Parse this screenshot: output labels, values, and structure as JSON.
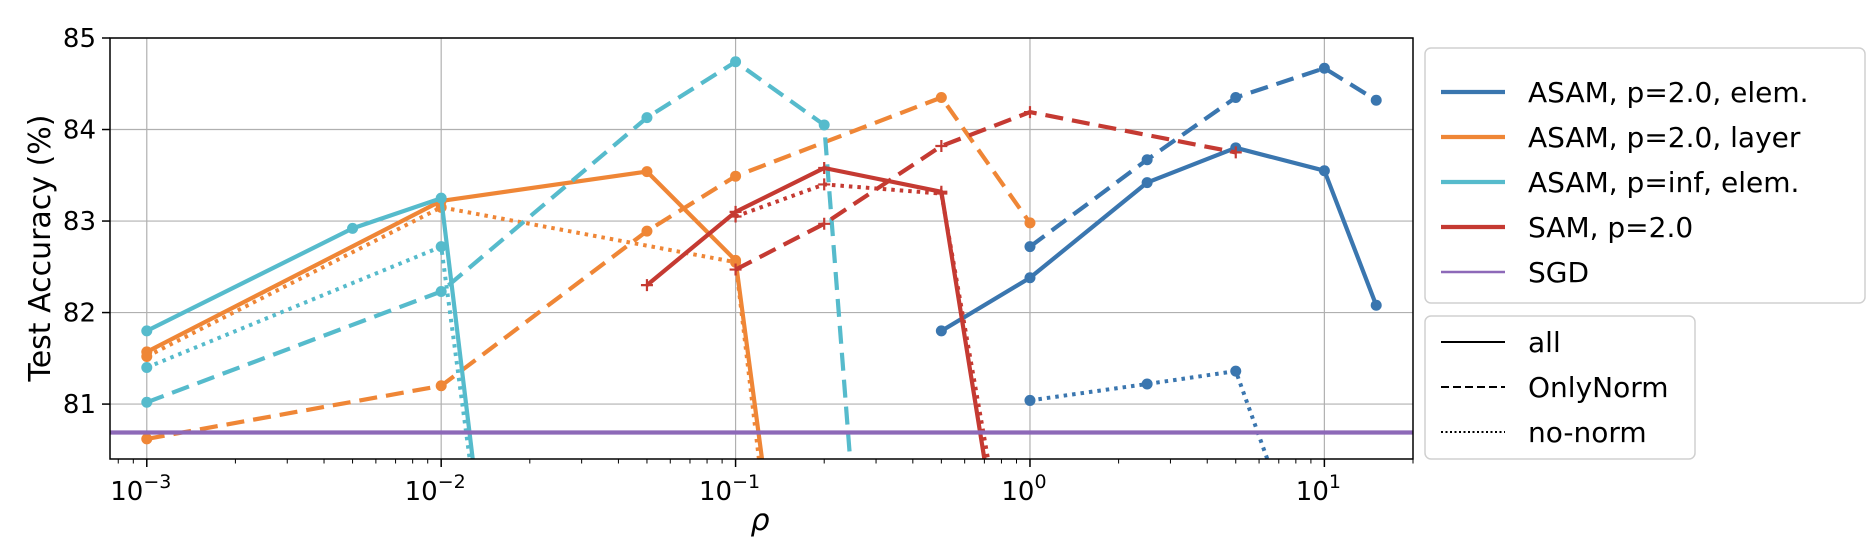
{
  "chart_data": {
    "type": "line",
    "title": "",
    "xlabel": "ρ",
    "ylabel": "Test Accuracy (%)",
    "xscale": "log",
    "xlim": [
      0.00075,
      20
    ],
    "ylim": [
      80.4,
      85.0
    ],
    "grid": true,
    "x_ticks": [
      {
        "value": 0.001,
        "base": "10",
        "exp": "−3"
      },
      {
        "value": 0.01,
        "base": "10",
        "exp": "−2"
      },
      {
        "value": 0.1,
        "base": "10",
        "exp": "−1"
      },
      {
        "value": 1,
        "base": "10",
        "exp": "0"
      },
      {
        "value": 10,
        "base": "10",
        "exp": "1"
      }
    ],
    "y_ticks": [
      81,
      82,
      83,
      84,
      85
    ],
    "legend_placement": "right, outside plot",
    "color_legend": [
      {
        "label": "ASAM, p=2.0, elem.",
        "color": "#3a76af"
      },
      {
        "label": "ASAM, p=2.0, layer",
        "color": "#ef8636"
      },
      {
        "label": "ASAM, p=inf, elem.",
        "color": "#56bbcc"
      },
      {
        "label": "SAM, p=2.0",
        "color": "#c53a32"
      },
      {
        "label": "SGD",
        "color": "#8d69b8"
      }
    ],
    "style_legend": [
      {
        "label": "all",
        "dash": "solid"
      },
      {
        "label": "OnlyNorm",
        "dash": "dashed"
      },
      {
        "label": "no-norm",
        "dash": "dotted"
      }
    ],
    "series": [
      {
        "group": "ASAM, p=2.0, elem.",
        "style": "all",
        "color": "#3a76af",
        "marker": "circle",
        "x": [
          0.5,
          1,
          2.5,
          5,
          10,
          15
        ],
        "y": [
          81.8,
          82.38,
          83.42,
          83.8,
          83.55,
          82.08
        ]
      },
      {
        "group": "ASAM, p=2.0, elem.",
        "style": "OnlyNorm",
        "color": "#3a76af",
        "marker": "circle",
        "x": [
          1,
          2.5,
          5,
          10,
          15
        ],
        "y": [
          82.72,
          83.67,
          84.35,
          84.67,
          84.32
        ]
      },
      {
        "group": "ASAM, p=2.0, elem.",
        "style": "no-norm",
        "color": "#3a76af",
        "marker": "circle",
        "x": [
          1,
          2.5,
          5,
          6.4
        ],
        "y": [
          81.04,
          81.22,
          81.36,
          80.4
        ]
      },
      {
        "group": "ASAM, p=2.0, layer",
        "style": "all",
        "color": "#ef8636",
        "marker": "circle",
        "x": [
          0.001,
          0.01,
          0.05,
          0.1,
          0.123
        ],
        "y": [
          81.57,
          83.22,
          83.54,
          82.57,
          80.4
        ]
      },
      {
        "group": "ASAM, p=2.0, layer",
        "style": "OnlyNorm",
        "color": "#ef8636",
        "marker": "circle",
        "x": [
          0.001,
          0.01,
          0.05,
          0.1,
          0.5,
          1
        ],
        "y": [
          80.62,
          81.2,
          82.89,
          83.49,
          84.35,
          82.98
        ]
      },
      {
        "group": "ASAM, p=2.0, layer",
        "style": "no-norm",
        "color": "#ef8636",
        "marker": "circle",
        "x": [
          0.001,
          0.01,
          0.1,
          0.12
        ],
        "y": [
          81.52,
          83.15,
          82.55,
          80.4
        ]
      },
      {
        "group": "ASAM, p=inf, elem.",
        "style": "all",
        "color": "#56bbcc",
        "marker": "circle",
        "x": [
          0.001,
          0.005,
          0.01,
          0.0128
        ],
        "y": [
          81.8,
          82.92,
          83.25,
          80.4
        ]
      },
      {
        "group": "ASAM, p=inf, elem.",
        "style": "OnlyNorm",
        "color": "#56bbcc",
        "marker": "circle",
        "x": [
          0.001,
          0.01,
          0.05,
          0.1,
          0.2,
          0.245
        ],
        "y": [
          81.02,
          82.23,
          84.13,
          84.74,
          84.05,
          80.4
        ]
      },
      {
        "group": "ASAM, p=inf, elem.",
        "style": "no-norm",
        "color": "#56bbcc",
        "marker": "circle",
        "x": [
          0.001,
          0.01,
          0.0125
        ],
        "y": [
          81.4,
          82.72,
          80.4
        ]
      },
      {
        "group": "SAM, p=2.0",
        "style": "all",
        "color": "#c53a32",
        "marker": "plus",
        "x": [
          0.05,
          0.1,
          0.2,
          0.5,
          0.7
        ],
        "y": [
          82.3,
          83.1,
          83.58,
          83.32,
          80.4
        ]
      },
      {
        "group": "SAM, p=2.0",
        "style": "OnlyNorm",
        "color": "#c53a32",
        "marker": "plus",
        "x": [
          0.1,
          0.2,
          0.5,
          1,
          5
        ],
        "y": [
          82.47,
          82.97,
          83.82,
          84.19,
          83.75
        ]
      },
      {
        "group": "SAM, p=2.0",
        "style": "no-norm",
        "color": "#c53a32",
        "marker": "plus",
        "x": [
          0.1,
          0.2,
          0.5,
          0.72
        ],
        "y": [
          83.05,
          83.4,
          83.3,
          80.4
        ]
      },
      {
        "group": "SGD",
        "style": "all",
        "color": "#8d69b8",
        "marker": "none",
        "x": [
          0.00075,
          20
        ],
        "y": [
          80.69,
          80.69
        ]
      }
    ]
  }
}
